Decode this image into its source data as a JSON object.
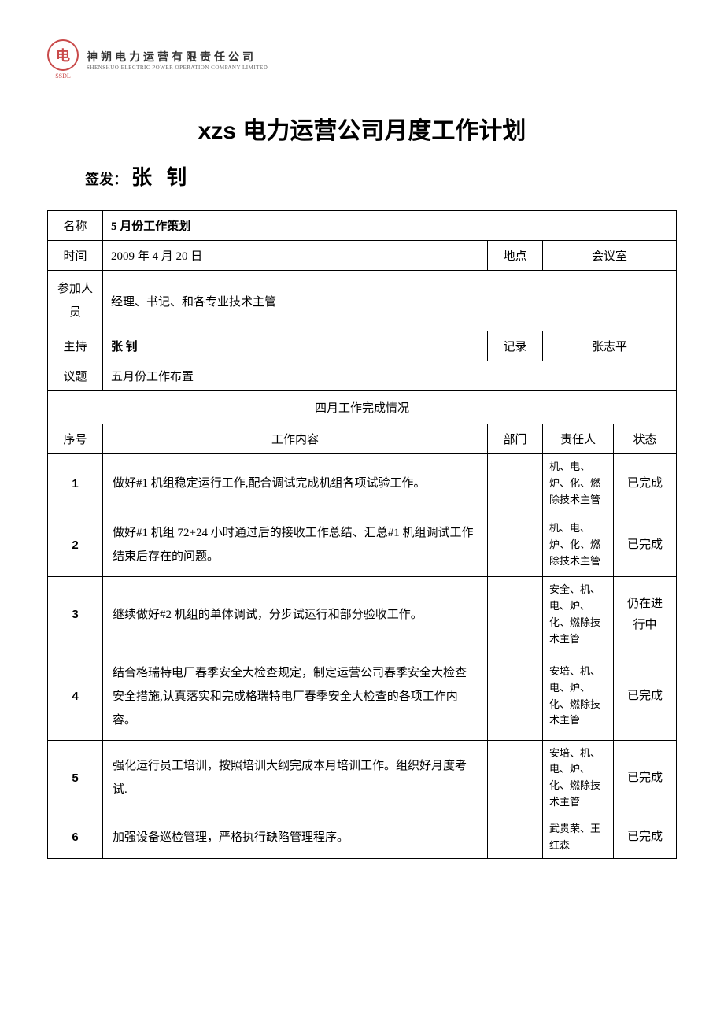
{
  "logo": {
    "symbol": "电",
    "ssdl": "SSDL",
    "company_cn": "神朔电力运营有限责任公司",
    "company_en": "SHENSHUO ELECTRIC POWER OPERATION COMPANY LIMITED"
  },
  "title": "xzs 电力运营公司月度工作计划",
  "signer": {
    "label": "签发：",
    "name": "张 钊"
  },
  "info": {
    "name_label": "名称",
    "name_value": "5 月份工作策划",
    "time_label": "时间",
    "time_value": "2009 年 4 月 20 日",
    "location_label": "地点",
    "location_value": "会议室",
    "attendees_label": "参加人员",
    "attendees_value": "经理、书记、和各专业技术主管",
    "host_label": "主持",
    "host_value": "张 钊",
    "recorder_label": "记录",
    "recorder_value": "张志平",
    "topic_label": "议题",
    "topic_value": "五月份工作布置"
  },
  "section_header": "四月工作完成情况",
  "columns": {
    "seq": "序号",
    "content": "工作内容",
    "dept": "部门",
    "person": "责任人",
    "status": "状态"
  },
  "rows": [
    {
      "seq": "1",
      "content": "做好#1 机组稳定运行工作,配合调试完成机组各项试验工作。",
      "dept": "",
      "person": "机、电、炉、化、燃除技术主管",
      "status": "已完成"
    },
    {
      "seq": "2",
      "content": "做好#1 机组 72+24 小时通过后的接收工作总结、汇总#1 机组调试工作结束后存在的问题。",
      "dept": "",
      "person": "机、电、炉、化、燃除技术主管",
      "status": "已完成"
    },
    {
      "seq": "3",
      "content": "继续做好#2 机组的单体调试，分步试运行和部分验收工作。",
      "dept": "",
      "person": "安全、机、电、炉、化、燃除技术主管",
      "status": "仍在进行中"
    },
    {
      "seq": "4",
      "content": "结合格瑞特电厂春季安全大检查规定，制定运营公司春季安全大检查安全措施,认真落实和完成格瑞特电厂春季安全大检查的各项工作内容。",
      "dept": "",
      "person": "安培、机、电、炉、化、燃除技术主管",
      "status": "已完成"
    },
    {
      "seq": "5",
      "content": "强化运行员工培训，按照培训大纲完成本月培训工作。组织好月度考试.",
      "dept": "",
      "person": "安培、机、电、炉、化、燃除技术主管",
      "status": "已完成"
    },
    {
      "seq": "6",
      "content": "加强设备巡检管理，严格执行缺陷管理程序。",
      "dept": "",
      "person": "武贵荣、王红森",
      "status": "已完成"
    }
  ]
}
